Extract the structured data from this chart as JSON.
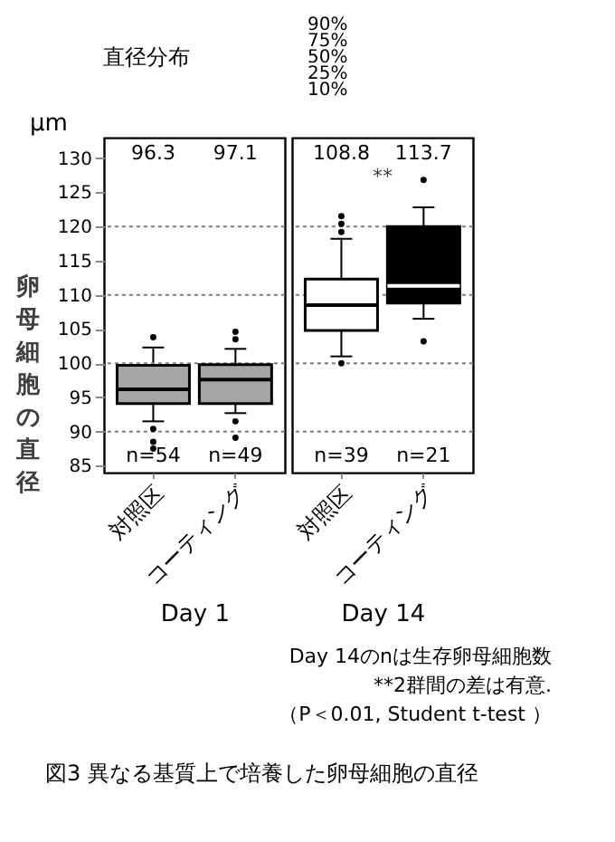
{
  "chart_data": [
    {
      "type": "other",
      "title": "直径分布",
      "annotations": [
        "90%",
        "75%",
        "50%",
        "25%",
        "10%"
      ]
    },
    {
      "type": "box",
      "title": "図3 異なる基質上で培養した卵母細胞の直径",
      "categories": [
        "対照区",
        "コーティング"
      ],
      "xlabel": "Day 1",
      "ylabel": "卵母細胞の直径",
      "series": [
        {
          "color": "#a6a6a6",
          "boxes": [
            {
              "low": 91.5,
              "q1": 94.1,
              "median": 96.2,
              "q3": 99.7,
              "high": 102.3,
              "outliers": [
                103.8,
                90.4,
                88.5,
                87.5
              ]
            },
            {
              "low": 92.7,
              "q1": 94.1,
              "median": 97.6,
              "q3": 99.8,
              "high": 102.1,
              "outliers": [
                104.6,
                103.5,
                91.5,
                89.1
              ]
            }
          ]
        }
      ],
      "ylim": [
        84,
        133
      ],
      "yticks": [
        85,
        90,
        95,
        100,
        105,
        110,
        115,
        120,
        125,
        130
      ],
      "ref_lines": [
        {
          "axis": "y",
          "value": 90,
          "color": "#808080",
          "line_style": "dotted"
        },
        {
          "axis": "y",
          "value": 100,
          "color": "#808080",
          "line_style": "dotted"
        },
        {
          "axis": "y",
          "value": 110,
          "color": "#808080",
          "line_style": "dotted"
        },
        {
          "axis": "y",
          "value": 120,
          "color": "#808080",
          "line_style": "dotted"
        }
      ],
      "annotations": [
        "96.3",
        "97.1",
        "n=54",
        "n=49",
        "μm"
      ]
    },
    {
      "type": "box",
      "categories": [
        "対照区",
        "コーティング"
      ],
      "xlabel": "Day 14",
      "tick_labels": "x",
      "series": [
        {
          "color": "#ffffff",
          "boxes": [
            {
              "low": 101.0,
              "q1": 104.8,
              "median": 108.5,
              "q3": 112.3,
              "high": 118.2,
              "outliers": [
                121.5,
                120.4,
                119.2,
                100.0
              ]
            },
            null
          ]
        },
        {
          "color": "#000000",
          "boxes": [
            null,
            {
              "low": 106.5,
              "q1": 108.8,
              "median": 111.3,
              "q3": 120.0,
              "high": 122.8,
              "outliers": [
                126.8,
                103.2
              ]
            }
          ]
        }
      ],
      "ylim": [
        84,
        133
      ],
      "ref_lines": [
        {
          "axis": "y",
          "value": 90,
          "color": "#808080",
          "line_style": "dotted"
        },
        {
          "axis": "y",
          "value": 100,
          "color": "#808080",
          "line_style": "dotted"
        },
        {
          "axis": "y",
          "value": 110,
          "color": "#808080",
          "line_style": "dotted"
        },
        {
          "axis": "y",
          "value": 120,
          "color": "#808080",
          "line_style": "dotted"
        }
      ],
      "annotations": [
        "108.8",
        "113.7",
        "n=39",
        "n=21",
        "**",
        "Day 14のnは生存卵母細胞数",
        "**2群間の差は有意.",
        "（P＜0.01, Student t-test ）"
      ]
    }
  ]
}
